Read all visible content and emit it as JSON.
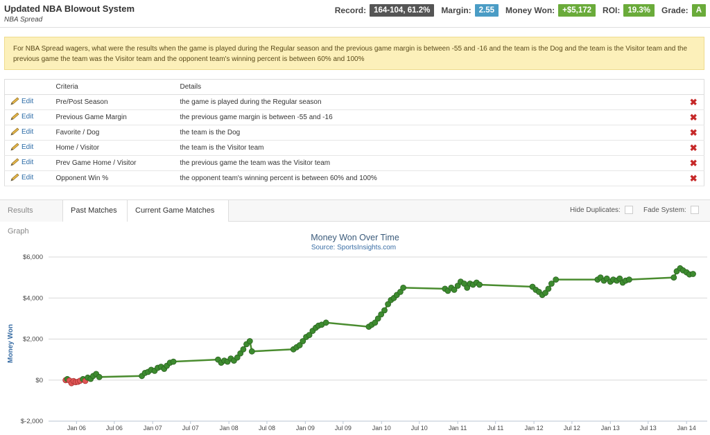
{
  "header": {
    "title": "Updated NBA Blowout System",
    "subtitle": "NBA Spread",
    "stats": [
      {
        "label": "Record:",
        "value": "164-104, 61.2%",
        "color": "#555555"
      },
      {
        "label": "Margin:",
        "value": "2.55",
        "color": "#4a9cc5"
      },
      {
        "label": "Money Won:",
        "value": "+$5,172",
        "color": "#6aab3a"
      },
      {
        "label": "ROI:",
        "value": "19.3%",
        "color": "#6aab3a"
      },
      {
        "label": "Grade:",
        "value": "A",
        "color": "#6aab3a"
      }
    ]
  },
  "description": "For NBA Spread wagers, what were the results when the game is played during the Regular season and the previous game margin is between -55 and -16 and the team is the Dog and the team is the Visitor team and the previous game the team was the Visitor team and the opponent team's winning percent is between 60% and 100%",
  "criteria_table": {
    "headers": [
      "Criteria",
      "Details"
    ],
    "edit_label": "Edit",
    "rows": [
      {
        "criteria": "Pre/Post Season",
        "details": "the game is played during the Regular season"
      },
      {
        "criteria": "Previous Game Margin",
        "details": "the previous game margin is between -55 and -16"
      },
      {
        "criteria": "Favorite / Dog",
        "details": "the team is the Dog"
      },
      {
        "criteria": "Home / Visitor",
        "details": "the team is the Visitor team"
      },
      {
        "criteria": "Prev Game Home / Visitor",
        "details": "the previous game the team was the Visitor team"
      },
      {
        "criteria": "Opponent Win %",
        "details": "the opponent team's winning percent is between 60% and 100%"
      }
    ]
  },
  "tabs": {
    "results_graph": "Results Graph",
    "past_matches": "Past Matches",
    "current_game_matches": "Current Game Matches",
    "hide_duplicates": "Hide Duplicates:",
    "fade_system": "Fade System:"
  },
  "chart_data": {
    "type": "line",
    "title": "Money Won Over Time",
    "subtitle": "Source: SportsInsights.com",
    "ylabel": "Money Won",
    "xlabel": "",
    "ylim": [
      -2000,
      6000
    ],
    "yticks": [
      -2000,
      0,
      2000,
      4000,
      6000
    ],
    "ytick_labels": [
      "$-2,000",
      "$0",
      "$2,000",
      "$4,000",
      "$6,000"
    ],
    "xticks": [
      "Jan 06",
      "Jul 06",
      "Jan 07",
      "Jul 07",
      "Jan 08",
      "Jul 08",
      "Jan 09",
      "Jul 09",
      "Jan 10",
      "Jul 10",
      "Jan 11",
      "Jul 11",
      "Jan 12",
      "Jul 12",
      "Jan 13",
      "Jul 13",
      "Jan 14"
    ],
    "grid": true,
    "colors": {
      "positive": "#3d8b2f",
      "negative": "#e05555",
      "line": "#4a8c2f"
    },
    "series": [
      {
        "points": [
          [
            "2005-11-10",
            0
          ],
          [
            "2005-11-18",
            50
          ],
          [
            "2005-11-28",
            -20
          ],
          [
            "2005-12-08",
            -150
          ],
          [
            "2005-12-18",
            -50
          ],
          [
            "2005-12-28",
            -100
          ],
          [
            "2006-01-08",
            -80
          ],
          [
            "2006-01-18",
            -30
          ],
          [
            "2006-02-01",
            50
          ],
          [
            "2006-02-12",
            -40
          ],
          [
            "2006-02-24",
            120
          ],
          [
            "2006-03-10",
            60
          ],
          [
            "2006-03-22",
            200
          ],
          [
            "2006-04-05",
            300
          ],
          [
            "2006-04-20",
            150
          ],
          [
            "2006-11-10",
            200
          ],
          [
            "2006-11-25",
            350
          ],
          [
            "2006-12-10",
            400
          ],
          [
            "2006-12-25",
            500
          ],
          [
            "2007-01-10",
            450
          ],
          [
            "2007-01-25",
            600
          ],
          [
            "2007-02-10",
            650
          ],
          [
            "2007-02-25",
            550
          ],
          [
            "2007-03-10",
            700
          ],
          [
            "2007-03-25",
            850
          ],
          [
            "2007-04-10",
            900
          ],
          [
            "2007-11-10",
            1000
          ],
          [
            "2007-11-25",
            850
          ],
          [
            "2007-12-10",
            950
          ],
          [
            "2007-12-25",
            900
          ],
          [
            "2008-01-10",
            1050
          ],
          [
            "2008-01-25",
            950
          ],
          [
            "2008-02-10",
            1100
          ],
          [
            "2008-02-25",
            1300
          ],
          [
            "2008-03-10",
            1500
          ],
          [
            "2008-03-25",
            1750
          ],
          [
            "2008-04-10",
            1900
          ],
          [
            "2008-04-20",
            1400
          ],
          [
            "2008-11-05",
            1500
          ],
          [
            "2008-11-20",
            1600
          ],
          [
            "2008-12-05",
            1700
          ],
          [
            "2008-12-20",
            1900
          ],
          [
            "2009-01-05",
            2100
          ],
          [
            "2009-01-20",
            2200
          ],
          [
            "2009-02-05",
            2400
          ],
          [
            "2009-02-20",
            2550
          ],
          [
            "2009-03-05",
            2650
          ],
          [
            "2009-03-20",
            2700
          ],
          [
            "2009-04-10",
            2800
          ],
          [
            "2009-11-01",
            2600
          ],
          [
            "2009-11-15",
            2700
          ],
          [
            "2009-12-01",
            2800
          ],
          [
            "2009-12-15",
            3000
          ],
          [
            "2009-12-30",
            3200
          ],
          [
            "2010-01-15",
            3400
          ],
          [
            "2010-02-01",
            3700
          ],
          [
            "2010-02-15",
            3900
          ],
          [
            "2010-03-01",
            4000
          ],
          [
            "2010-03-15",
            4150
          ],
          [
            "2010-04-01",
            4300
          ],
          [
            "2010-04-15",
            4500
          ],
          [
            "2010-11-01",
            4450
          ],
          [
            "2010-11-15",
            4350
          ],
          [
            "2010-12-01",
            4500
          ],
          [
            "2010-12-15",
            4400
          ],
          [
            "2011-01-01",
            4600
          ],
          [
            "2011-01-15",
            4800
          ],
          [
            "2011-02-01",
            4700
          ],
          [
            "2011-02-15",
            4500
          ],
          [
            "2011-03-01",
            4700
          ],
          [
            "2011-03-15",
            4650
          ],
          [
            "2011-04-01",
            4750
          ],
          [
            "2011-04-15",
            4650
          ],
          [
            "2011-12-25",
            4550
          ],
          [
            "2012-01-10",
            4400
          ],
          [
            "2012-01-25",
            4300
          ],
          [
            "2012-02-10",
            4150
          ],
          [
            "2012-02-25",
            4250
          ],
          [
            "2012-03-10",
            4450
          ],
          [
            "2012-03-25",
            4700
          ],
          [
            "2012-04-15",
            4900
          ],
          [
            "2012-11-01",
            4900
          ],
          [
            "2012-11-15",
            5000
          ],
          [
            "2012-12-01",
            4850
          ],
          [
            "2012-12-15",
            4950
          ],
          [
            "2013-01-01",
            4800
          ],
          [
            "2013-01-15",
            4900
          ],
          [
            "2013-02-01",
            4850
          ],
          [
            "2013-02-15",
            4950
          ],
          [
            "2013-03-01",
            4750
          ],
          [
            "2013-03-15",
            4850
          ],
          [
            "2013-04-01",
            4900
          ],
          [
            "2013-11-01",
            5000
          ],
          [
            "2013-11-15",
            5300
          ],
          [
            "2013-12-01",
            5450
          ],
          [
            "2013-12-15",
            5350
          ],
          [
            "2014-01-01",
            5250
          ],
          [
            "2014-01-15",
            5150
          ],
          [
            "2014-02-01",
            5172
          ]
        ]
      }
    ]
  }
}
